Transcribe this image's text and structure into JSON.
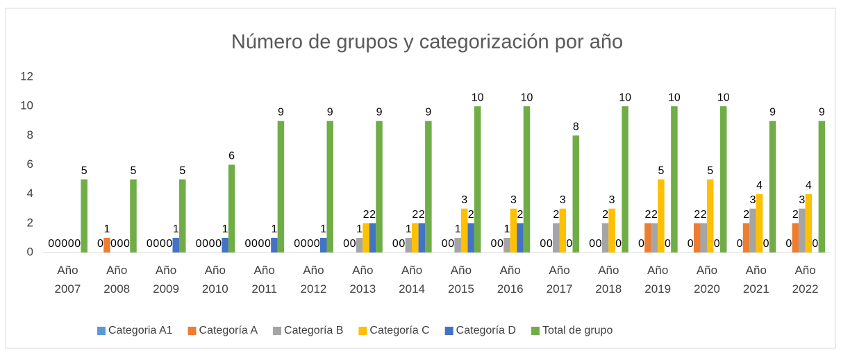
{
  "chart_data": {
    "type": "bar",
    "title": "Número de grupos y categorización por año",
    "categories": [
      "Año 2007",
      "Año 2008",
      "Año 2009",
      "Año 2010",
      "Año 2011",
      "Año 2012",
      "Año 2013",
      "Año 2014",
      "Año 2015",
      "Año 2016",
      "Año 2017",
      "Año 2018",
      "Año 2019",
      "Año 2020",
      "Año 2021",
      "Año 2022"
    ],
    "series": [
      {
        "name": "Categoria A1",
        "color": "#5b9bd5",
        "values": [
          0,
          0,
          0,
          0,
          0,
          0,
          0,
          0,
          0,
          0,
          0,
          0,
          0,
          0,
          0,
          0
        ]
      },
      {
        "name": "Categoría A",
        "color": "#ed7d31",
        "values": [
          0,
          1,
          0,
          0,
          0,
          0,
          0,
          0,
          0,
          0,
          0,
          0,
          2,
          2,
          2,
          2
        ]
      },
      {
        "name": "Categoría B",
        "color": "#a5a5a5",
        "values": [
          0,
          0,
          0,
          0,
          0,
          0,
          1,
          1,
          1,
          1,
          2,
          2,
          2,
          2,
          3,
          3
        ]
      },
      {
        "name": "Categoría C",
        "color": "#ffc000",
        "values": [
          0,
          0,
          0,
          0,
          0,
          0,
          2,
          2,
          3,
          3,
          3,
          3,
          5,
          5,
          4,
          4
        ]
      },
      {
        "name": "Categoría D",
        "color": "#4472c4",
        "values": [
          0,
          0,
          1,
          1,
          1,
          1,
          2,
          2,
          2,
          2,
          0,
          0,
          0,
          0,
          0,
          0
        ]
      },
      {
        "name": "Total de grupo",
        "color": "#70ad47",
        "values": [
          5,
          5,
          5,
          6,
          9,
          9,
          9,
          9,
          10,
          10,
          8,
          10,
          10,
          10,
          9,
          9
        ]
      }
    ],
    "ylim": [
      0,
      12
    ],
    "yticks": [
      0,
      2,
      4,
      6,
      8,
      10,
      12
    ],
    "grid": false,
    "legend": "bottom"
  }
}
